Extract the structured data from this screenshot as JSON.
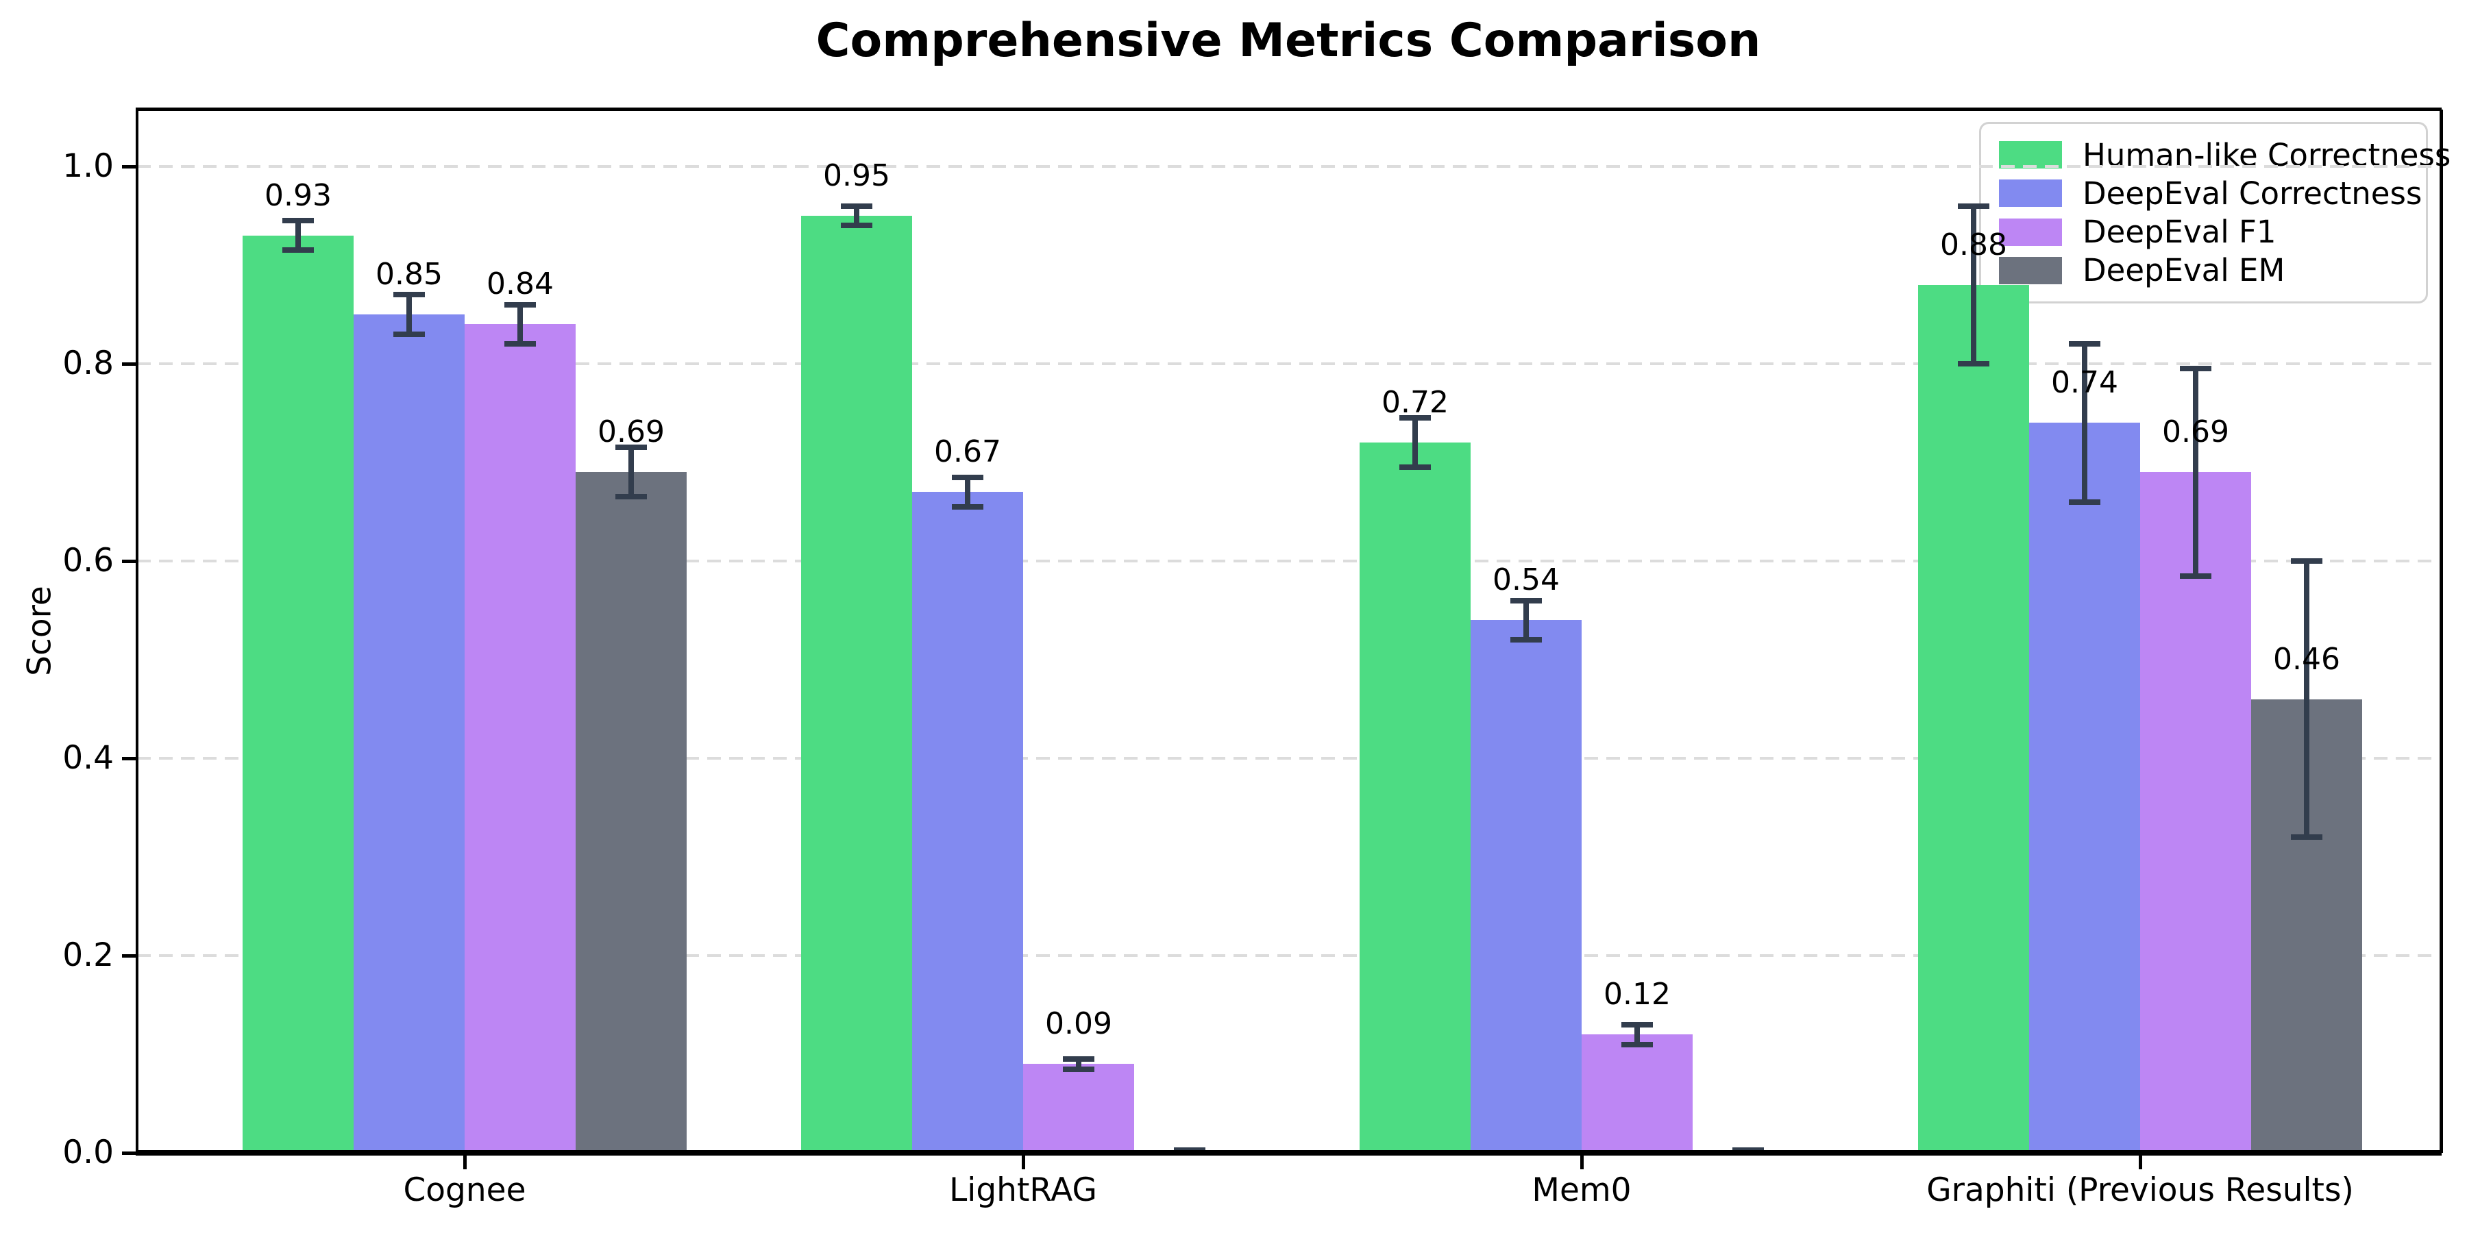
{
  "chart_data": {
    "type": "bar",
    "title": "Comprehensive Metrics Comparison",
    "ylabel": "Score",
    "xlabel": "",
    "categories": [
      "Cognee",
      "LightRAG",
      "Mem0",
      "Graphiti (Previous Results)"
    ],
    "series": [
      {
        "name": "Human-like Correctness",
        "color": "#4ddc83",
        "values": [
          0.93,
          0.95,
          0.72,
          0.88
        ],
        "errors": [
          0.015,
          0.01,
          0.025,
          0.08
        ],
        "labels": [
          "0.93",
          "0.95",
          "0.72",
          "0.88"
        ]
      },
      {
        "name": "DeepEval Correctness",
        "color": "#828af0",
        "values": [
          0.85,
          0.67,
          0.54,
          0.74
        ],
        "errors": [
          0.02,
          0.015,
          0.02,
          0.08
        ],
        "labels": [
          "0.85",
          "0.67",
          "0.54",
          "0.74"
        ]
      },
      {
        "name": "DeepEval F1",
        "color": "#bd86f4",
        "values": [
          0.84,
          0.09,
          0.12,
          0.69
        ],
        "errors": [
          0.02,
          0.005,
          0.01,
          0.105
        ],
        "labels": [
          "0.84",
          "0.09",
          "0.12",
          "0.69"
        ]
      },
      {
        "name": "DeepEval EM",
        "color": "#6c727e",
        "values": [
          0.69,
          0.0,
          0.0,
          0.46
        ],
        "errors": [
          0.025,
          0.003,
          0.003,
          0.14
        ],
        "labels": [
          "0.69",
          null,
          null,
          "0.46"
        ]
      }
    ],
    "error_bar_color": "#323d4d",
    "yticks": [
      "0.0",
      "0.2",
      "0.4",
      "0.6",
      "0.8",
      "1.0"
    ],
    "ytick_values": [
      0.0,
      0.2,
      0.4,
      0.6,
      0.8,
      1.0
    ],
    "ylim": [
      0.0,
      1.057
    ],
    "grid": "horizontal-dashed",
    "legend_position": "upper-right"
  }
}
